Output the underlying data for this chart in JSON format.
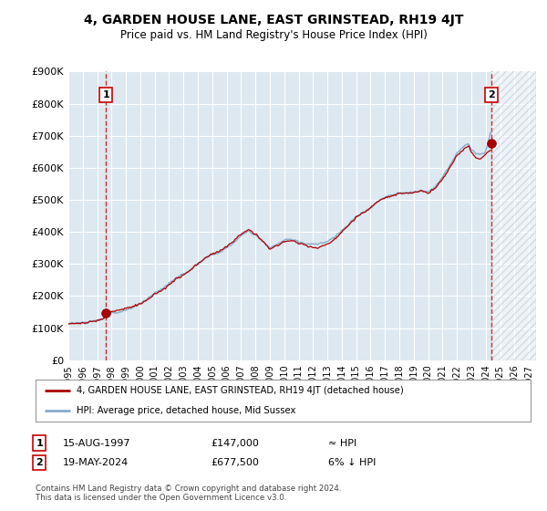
{
  "title": "4, GARDEN HOUSE LANE, EAST GRINSTEAD, RH19 4JT",
  "subtitle": "Price paid vs. HM Land Registry's House Price Index (HPI)",
  "background_color": "#ffffff",
  "plot_bg_color": "#dde8f0",
  "grid_color": "#ffffff",
  "hatch_color": "#c8d8e8",
  "line_color_hpi": "#88aacc",
  "line_color_price": "#aa0000",
  "ylim": [
    0,
    900000
  ],
  "yticks": [
    0,
    100000,
    200000,
    300000,
    400000,
    500000,
    600000,
    700000,
    800000,
    900000
  ],
  "ytick_labels": [
    "£0",
    "£100K",
    "£200K",
    "£300K",
    "£400K",
    "£500K",
    "£600K",
    "£700K",
    "£800K",
    "£900K"
  ],
  "xlim_start": 1995.0,
  "xlim_end": 2027.5,
  "xticks": [
    1995,
    1996,
    1997,
    1998,
    1999,
    2000,
    2001,
    2002,
    2003,
    2004,
    2005,
    2006,
    2007,
    2008,
    2009,
    2010,
    2011,
    2012,
    2013,
    2014,
    2015,
    2016,
    2017,
    2018,
    2019,
    2020,
    2021,
    2022,
    2023,
    2024,
    2025,
    2026,
    2027
  ],
  "point1_x": 1997.62,
  "point1_y": 147000,
  "point2_x": 2024.38,
  "point2_y": 677500,
  "legend_line1": "4, GARDEN HOUSE LANE, EAST GRINSTEAD, RH19 4JT (detached house)",
  "legend_line2": "HPI: Average price, detached house, Mid Sussex",
  "footer": "Contains HM Land Registry data © Crown copyright and database right 2024.\nThis data is licensed under the Open Government Licence v3.0.",
  "hatch_start": 2024.38
}
